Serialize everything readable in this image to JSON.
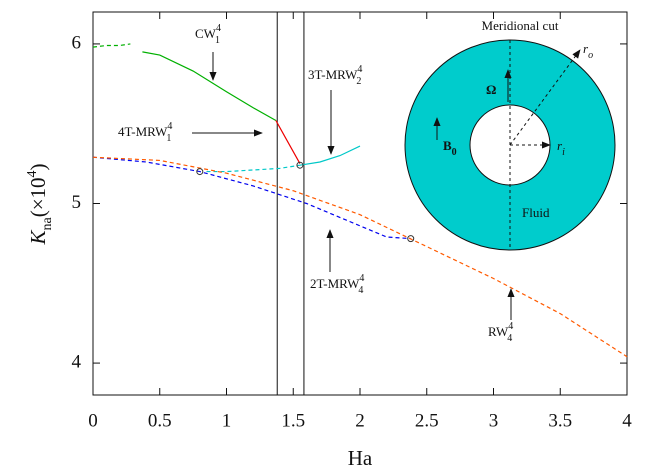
{
  "chart_data": {
    "type": "line",
    "xlabel": "Ha",
    "ylabel": {
      "symbol": "K",
      "sub": "na",
      "factor": "(×10",
      "sup": "4",
      "close": ")"
    },
    "xlim": [
      0,
      4
    ],
    "ylim": [
      3.8,
      6.2
    ],
    "xticks": [
      0,
      0.5,
      1,
      1.5,
      2,
      2.5,
      3,
      3.5,
      4
    ],
    "yticks": [
      4,
      5,
      6
    ],
    "series": [
      {
        "color": "#00b000",
        "dashed": true,
        "x": [
          0,
          0.1,
          0.2,
          0.28
        ],
        "values": [
          5.98,
          5.99,
          5.99,
          6.0
        ]
      },
      {
        "color": "#00b000",
        "dashed": false,
        "x": [
          0.37,
          0.5,
          0.75,
          1.0,
          1.2,
          1.37
        ],
        "values": [
          5.95,
          5.93,
          5.83,
          5.7,
          5.6,
          5.52
        ]
      },
      {
        "color": "#ee0000",
        "dashed": false,
        "x": [
          1.37,
          1.45,
          1.55
        ],
        "values": [
          5.52,
          5.4,
          5.25
        ]
      },
      {
        "color": "#00c8c8",
        "dashed": true,
        "x": [
          0.85,
          1.0,
          1.2,
          1.4,
          1.55
        ],
        "values": [
          5.2,
          5.2,
          5.21,
          5.22,
          5.24
        ]
      },
      {
        "color": "#00c8c8",
        "dashed": false,
        "x": [
          1.55,
          1.7,
          1.85,
          2.0
        ],
        "values": [
          5.24,
          5.26,
          5.3,
          5.36
        ]
      },
      {
        "color": "#0000ee",
        "dashed": true,
        "x": [
          0,
          0.4,
          0.8,
          1.2,
          1.6,
          2.0,
          2.2,
          2.38
        ],
        "values": [
          5.29,
          5.26,
          5.2,
          5.11,
          5.0,
          4.86,
          4.79,
          4.78
        ]
      },
      {
        "color": "#ff5a00",
        "dashed": true,
        "x": [
          0,
          0.5,
          1.0,
          1.5,
          2.0,
          2.5,
          3.0,
          3.5,
          4.0
        ],
        "values": [
          5.29,
          5.27,
          5.19,
          5.08,
          4.93,
          4.73,
          4.53,
          4.31,
          4.04
        ]
      }
    ],
    "points": {
      "x": [
        0.8,
        1.55,
        2.38
      ],
      "values": [
        5.2,
        5.24,
        4.78
      ]
    },
    "vlines": [
      1.38,
      1.58
    ],
    "annotations": [
      {
        "text": "CW",
        "sub": "1",
        "sup": "4"
      },
      {
        "text": "4T-MRW",
        "sub": "1",
        "sup": "4"
      },
      {
        "text": "3T-MRW",
        "sub": "2",
        "sup": "4"
      },
      {
        "text": "2T-MRW",
        "sub": "4",
        "sup": "4"
      },
      {
        "text": "RW",
        "sub": "4",
        "sup": "4"
      }
    ],
    "inset": {
      "title": "Meridional cut",
      "omega": "Ω",
      "field": "B",
      "field_sub": "0",
      "outer": "r",
      "outer_sub": "o",
      "inner": "r",
      "inner_sub": "i",
      "fluid": "Fluid"
    }
  }
}
